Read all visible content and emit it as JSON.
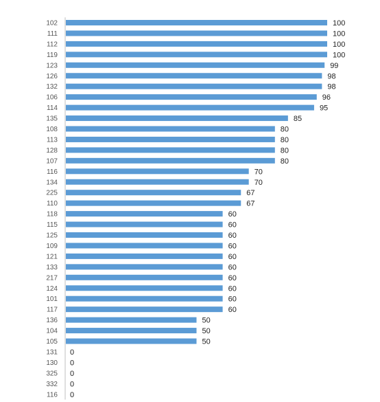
{
  "chart_data": {
    "type": "bar",
    "orientation": "horizontal",
    "categories": [
      "102",
      "111",
      "112",
      "119",
      "123",
      "126",
      "132",
      "106",
      "114",
      "135",
      "108",
      "113",
      "128",
      "107",
      "116",
      "134",
      "225",
      "110",
      "118",
      "115",
      "125",
      "109",
      "121",
      "133",
      "217",
      "124",
      "101",
      "117",
      "136",
      "104",
      "105",
      "131",
      "130",
      "325",
      "332",
      "116"
    ],
    "values": [
      100,
      100,
      100,
      100,
      99,
      98,
      98,
      96,
      95,
      85,
      80,
      80,
      80,
      80,
      70,
      70,
      67,
      67,
      60,
      60,
      60,
      60,
      60,
      60,
      60,
      60,
      60,
      60,
      50,
      50,
      50,
      0,
      0,
      0,
      0,
      0
    ],
    "xlim": [
      0,
      100
    ],
    "grid": false,
    "legend": "none",
    "data_labels": true,
    "bar_color": "#5B9BD5",
    "axis_color": "#BFBFBF",
    "category_label_color": "#555555",
    "value_label_color": "#222222"
  }
}
